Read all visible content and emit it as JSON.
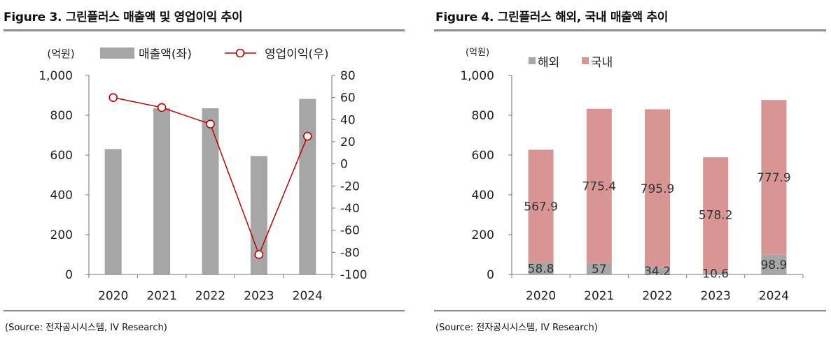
{
  "left": {
    "title": "Figure 3. 그린플러스 매출액 및 영업이익 추이",
    "source": "(Source: 전자공시시스템, IV Research)"
  },
  "right": {
    "title": "Figure 4. 그린플러스 해외, 국내 매출액 추이",
    "source": "(Source: 전자공시시스템, IV Research)"
  },
  "colors": {
    "bar_gray": "#a6a6a6",
    "line_red": "#c00000",
    "domestic": "#d99594",
    "overseas": "#a6a6a6",
    "rule": "#8c8c8c"
  },
  "chart_data": [
    {
      "type": "bar",
      "combo": "bar+line",
      "categories": [
        "2020",
        "2021",
        "2022",
        "2023",
        "2024"
      ],
      "series": [
        {
          "name": "매출액(좌)",
          "type": "bar",
          "axis": "left",
          "values": [
            630,
            835,
            835,
            595,
            882
          ]
        },
        {
          "name": "영업이익(우)",
          "type": "line",
          "axis": "right",
          "values": [
            60,
            51,
            36,
            -82,
            25
          ]
        }
      ],
      "left_unit": "(억원)",
      "ylim_left": [
        0,
        1000
      ],
      "yticks_left": [
        0,
        200,
        400,
        600,
        800,
        1000
      ],
      "ytick_labels_left": [
        "0",
        "200",
        "400",
        "600",
        "800",
        "1,000"
      ],
      "ylim_right": [
        -100,
        80
      ],
      "yticks_right": [
        -100,
        -80,
        -60,
        -40,
        -20,
        0,
        20,
        40,
        60,
        80
      ],
      "ytick_labels_right": [
        "-100",
        "-80",
        "-60",
        "-40",
        "-20",
        "0",
        "20",
        "40",
        "60",
        "80"
      ],
      "legend": "top",
      "grid": false
    },
    {
      "type": "bar",
      "stacked": true,
      "categories": [
        "2020",
        "2021",
        "2022",
        "2023",
        "2024"
      ],
      "series": [
        {
          "name": "해외",
          "values": [
            58.8,
            57,
            34.2,
            10.6,
            98.9
          ],
          "labels": [
            "58.8",
            "57",
            "34.2",
            "10.6",
            "98.9"
          ]
        },
        {
          "name": "국내",
          "values": [
            567.9,
            775.4,
            795.9,
            578.2,
            777.9
          ],
          "labels": [
            "567.9",
            "775.4",
            "795.9",
            "578.2",
            "777.9"
          ]
        }
      ],
      "unit": "(억원)",
      "ylim": [
        0,
        1000
      ],
      "yticks": [
        0,
        200,
        400,
        600,
        800,
        1000
      ],
      "ytick_labels": [
        "0",
        "200",
        "400",
        "600",
        "800",
        "1,000"
      ],
      "legend": "top-left",
      "grid": false
    }
  ]
}
